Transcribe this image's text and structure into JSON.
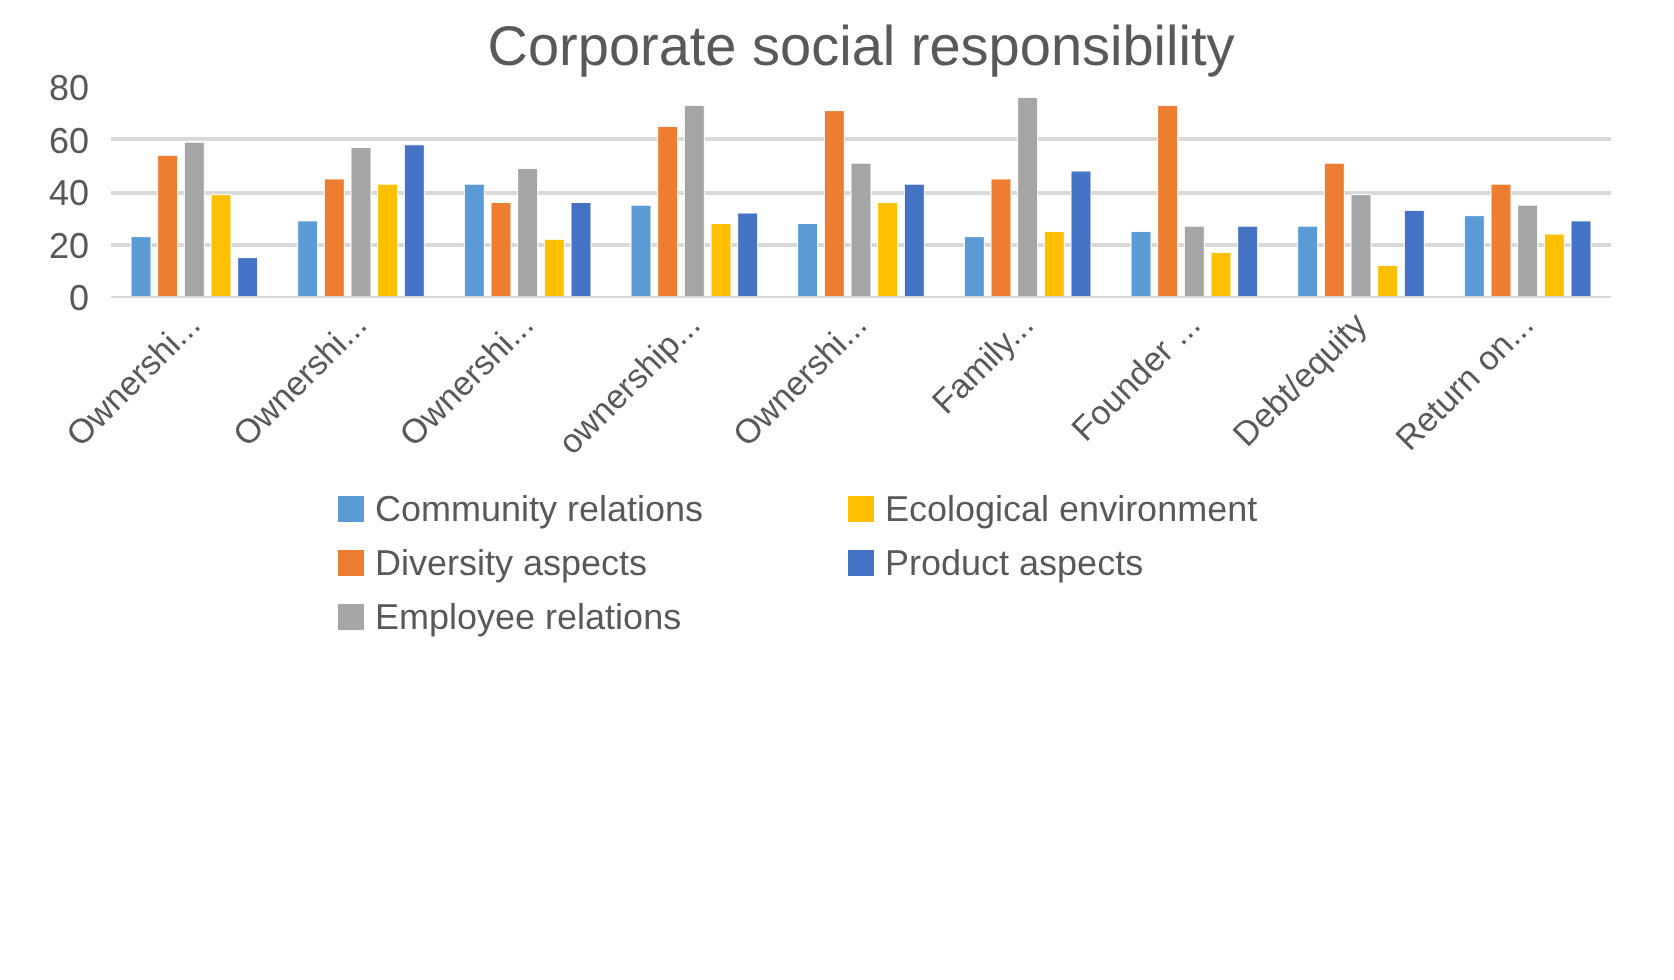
{
  "chart_data": {
    "type": "bar",
    "title": "Corporate social responsibility",
    "categories": [
      "Ownershi...",
      "Ownershi...",
      "Ownershi...",
      "ownership...",
      "Ownershi...",
      "Family...",
      "Founder ...",
      "Debt/equity",
      "Return on..."
    ],
    "series": [
      {
        "name": "Community relations",
        "color": "#5b9bd5",
        "values": [
          23,
          29,
          43,
          35,
          28,
          23,
          25,
          27,
          31
        ]
      },
      {
        "name": "Diversity aspects",
        "color": "#ed7d31",
        "values": [
          54,
          45,
          36,
          65,
          71,
          45,
          73,
          51,
          43
        ]
      },
      {
        "name": "Employee relations",
        "color": "#a5a5a5",
        "values": [
          59,
          57,
          49,
          73,
          51,
          76,
          27,
          39,
          35
        ]
      },
      {
        "name": "Ecological environment",
        "color": "#ffc000",
        "values": [
          39,
          43,
          22,
          28,
          36,
          25,
          17,
          12,
          24
        ]
      },
      {
        "name": "Product aspects",
        "color": "#4472c4",
        "values": [
          15,
          58,
          36,
          32,
          43,
          48,
          27,
          33,
          29
        ]
      }
    ],
    "ylim": [
      0,
      80
    ],
    "yticks": [
      0,
      20,
      40,
      60,
      80
    ],
    "grid": "y",
    "legend": "bottom"
  }
}
